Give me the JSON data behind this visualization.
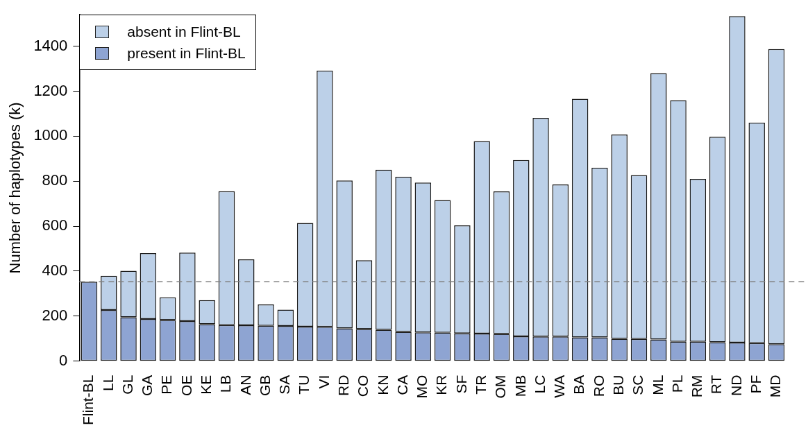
{
  "chart_data": {
    "type": "bar",
    "stacked": true,
    "ylabel": "Number of haplotypes (k)",
    "categories": [
      "Flint-BL",
      "LL",
      "GL",
      "GA",
      "PE",
      "OE",
      "KE",
      "LB",
      "AN",
      "GB",
      "SA",
      "TU",
      "VI",
      "RD",
      "CO",
      "KN",
      "CA",
      "MO",
      "KR",
      "SF",
      "TR",
      "OM",
      "MB",
      "LC",
      "WA",
      "BA",
      "RO",
      "BU",
      "SC",
      "ML",
      "PL",
      "RM",
      "RT",
      "ND",
      "PF",
      "MD"
    ],
    "series": [
      {
        "name": "present in Flint-BL",
        "color": "#8ea4d2",
        "values": [
          353,
          227,
          195,
          187,
          182,
          178,
          164,
          160,
          159,
          157,
          156,
          153,
          152,
          145,
          142,
          139,
          130,
          128,
          126,
          123,
          122,
          121,
          110,
          109,
          109,
          105,
          105,
          99,
          98,
          96,
          86,
          86,
          84,
          82,
          80,
          75
        ]
      },
      {
        "name": "absent in Flint-BL",
        "color": "#bcd0e8",
        "values": [
          0,
          152,
          206,
          293,
          101,
          304,
          107,
          595,
          293,
          95,
          73,
          461,
          1140,
          658,
          306,
          712,
          690,
          666,
          590,
          480,
          856,
          633,
          784,
          972,
          676,
          1061,
          755,
          908,
          729,
          1184,
          1074,
          724,
          913,
          1452,
          980,
          1312
        ]
      }
    ],
    "ylim": [
      0,
      1540
    ],
    "yticks": [
      0,
      200,
      400,
      600,
      800,
      1000,
      1200,
      1400
    ],
    "ref_lines": [
      {
        "axis": "y",
        "value": 353,
        "color": "#808080",
        "line_style": "dashed"
      }
    ],
    "legend": "top left",
    "grid": false
  }
}
